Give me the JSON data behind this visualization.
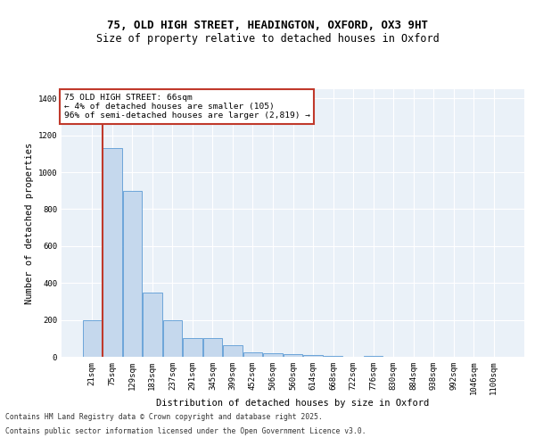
{
  "title1": "75, OLD HIGH STREET, HEADINGTON, OXFORD, OX3 9HT",
  "title2": "Size of property relative to detached houses in Oxford",
  "xlabel": "Distribution of detached houses by size in Oxford",
  "ylabel": "Number of detached properties",
  "categories": [
    "21sqm",
    "75sqm",
    "129sqm",
    "183sqm",
    "237sqm",
    "291sqm",
    "345sqm",
    "399sqm",
    "452sqm",
    "506sqm",
    "560sqm",
    "614sqm",
    "668sqm",
    "722sqm",
    "776sqm",
    "830sqm",
    "884sqm",
    "938sqm",
    "992sqm",
    "1046sqm",
    "1100sqm"
  ],
  "values": [
    200,
    1130,
    900,
    350,
    200,
    100,
    100,
    65,
    25,
    20,
    15,
    10,
    5,
    0,
    5,
    0,
    0,
    0,
    0,
    0,
    0
  ],
  "bar_color": "#c5d8ed",
  "bar_edge_color": "#5b9bd5",
  "vline_color": "#c0392b",
  "annotation_text": "75 OLD HIGH STREET: 66sqm\n← 4% of detached houses are smaller (105)\n96% of semi-detached houses are larger (2,819) →",
  "annotation_box_color": "#c0392b",
  "ylim": [
    0,
    1450
  ],
  "yticks": [
    0,
    200,
    400,
    600,
    800,
    1000,
    1200,
    1400
  ],
  "background_color": "#eaf1f8",
  "grid_color": "#ffffff",
  "footer1": "Contains HM Land Registry data © Crown copyright and database right 2025.",
  "footer2": "Contains public sector information licensed under the Open Government Licence v3.0.",
  "title1_fontsize": 9,
  "title2_fontsize": 8.5,
  "axis_fontsize": 7.5,
  "tick_fontsize": 6.5,
  "annotation_fontsize": 6.8,
  "footer_fontsize": 5.8
}
